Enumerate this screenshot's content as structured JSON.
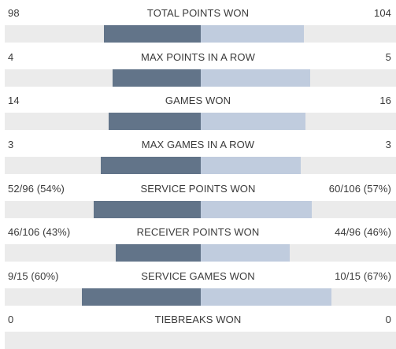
{
  "rows": [
    {
      "name": "TOTAL POINTS WON",
      "left": "98",
      "right": "104",
      "left_share": 0.495,
      "right_share": 0.525
    },
    {
      "name": "MAX POINTS IN A ROW",
      "left": "4",
      "right": "5",
      "left_share": 0.45,
      "right_share": 0.56
    },
    {
      "name": "GAMES WON",
      "left": "14",
      "right": "16",
      "left_share": 0.47,
      "right_share": 0.535
    },
    {
      "name": "MAX GAMES IN A ROW",
      "left": "3",
      "right": "3",
      "left_share": 0.51,
      "right_share": 0.51
    },
    {
      "name": "SERVICE POINTS WON",
      "left": "52/96 (54%)",
      "right": "60/106 (57%)",
      "left_share": 0.545,
      "right_share": 0.565
    },
    {
      "name": "RECEIVER POINTS WON",
      "left": "46/106 (43%)",
      "right": "44/96 (46%)",
      "left_share": 0.435,
      "right_share": 0.455
    },
    {
      "name": "SERVICE GAMES WON",
      "left": "9/15 (60%)",
      "right": "10/15 (67%)",
      "left_share": 0.605,
      "right_share": 0.665
    },
    {
      "name": "TIEBREAKS WON",
      "left": "0",
      "right": "0",
      "left_share": 0,
      "right_share": 0
    }
  ],
  "colors": {
    "left_bar": "#627489",
    "right_bar": "#c0ccde",
    "track": "#ebebeb",
    "text": "#3a3a3a"
  }
}
